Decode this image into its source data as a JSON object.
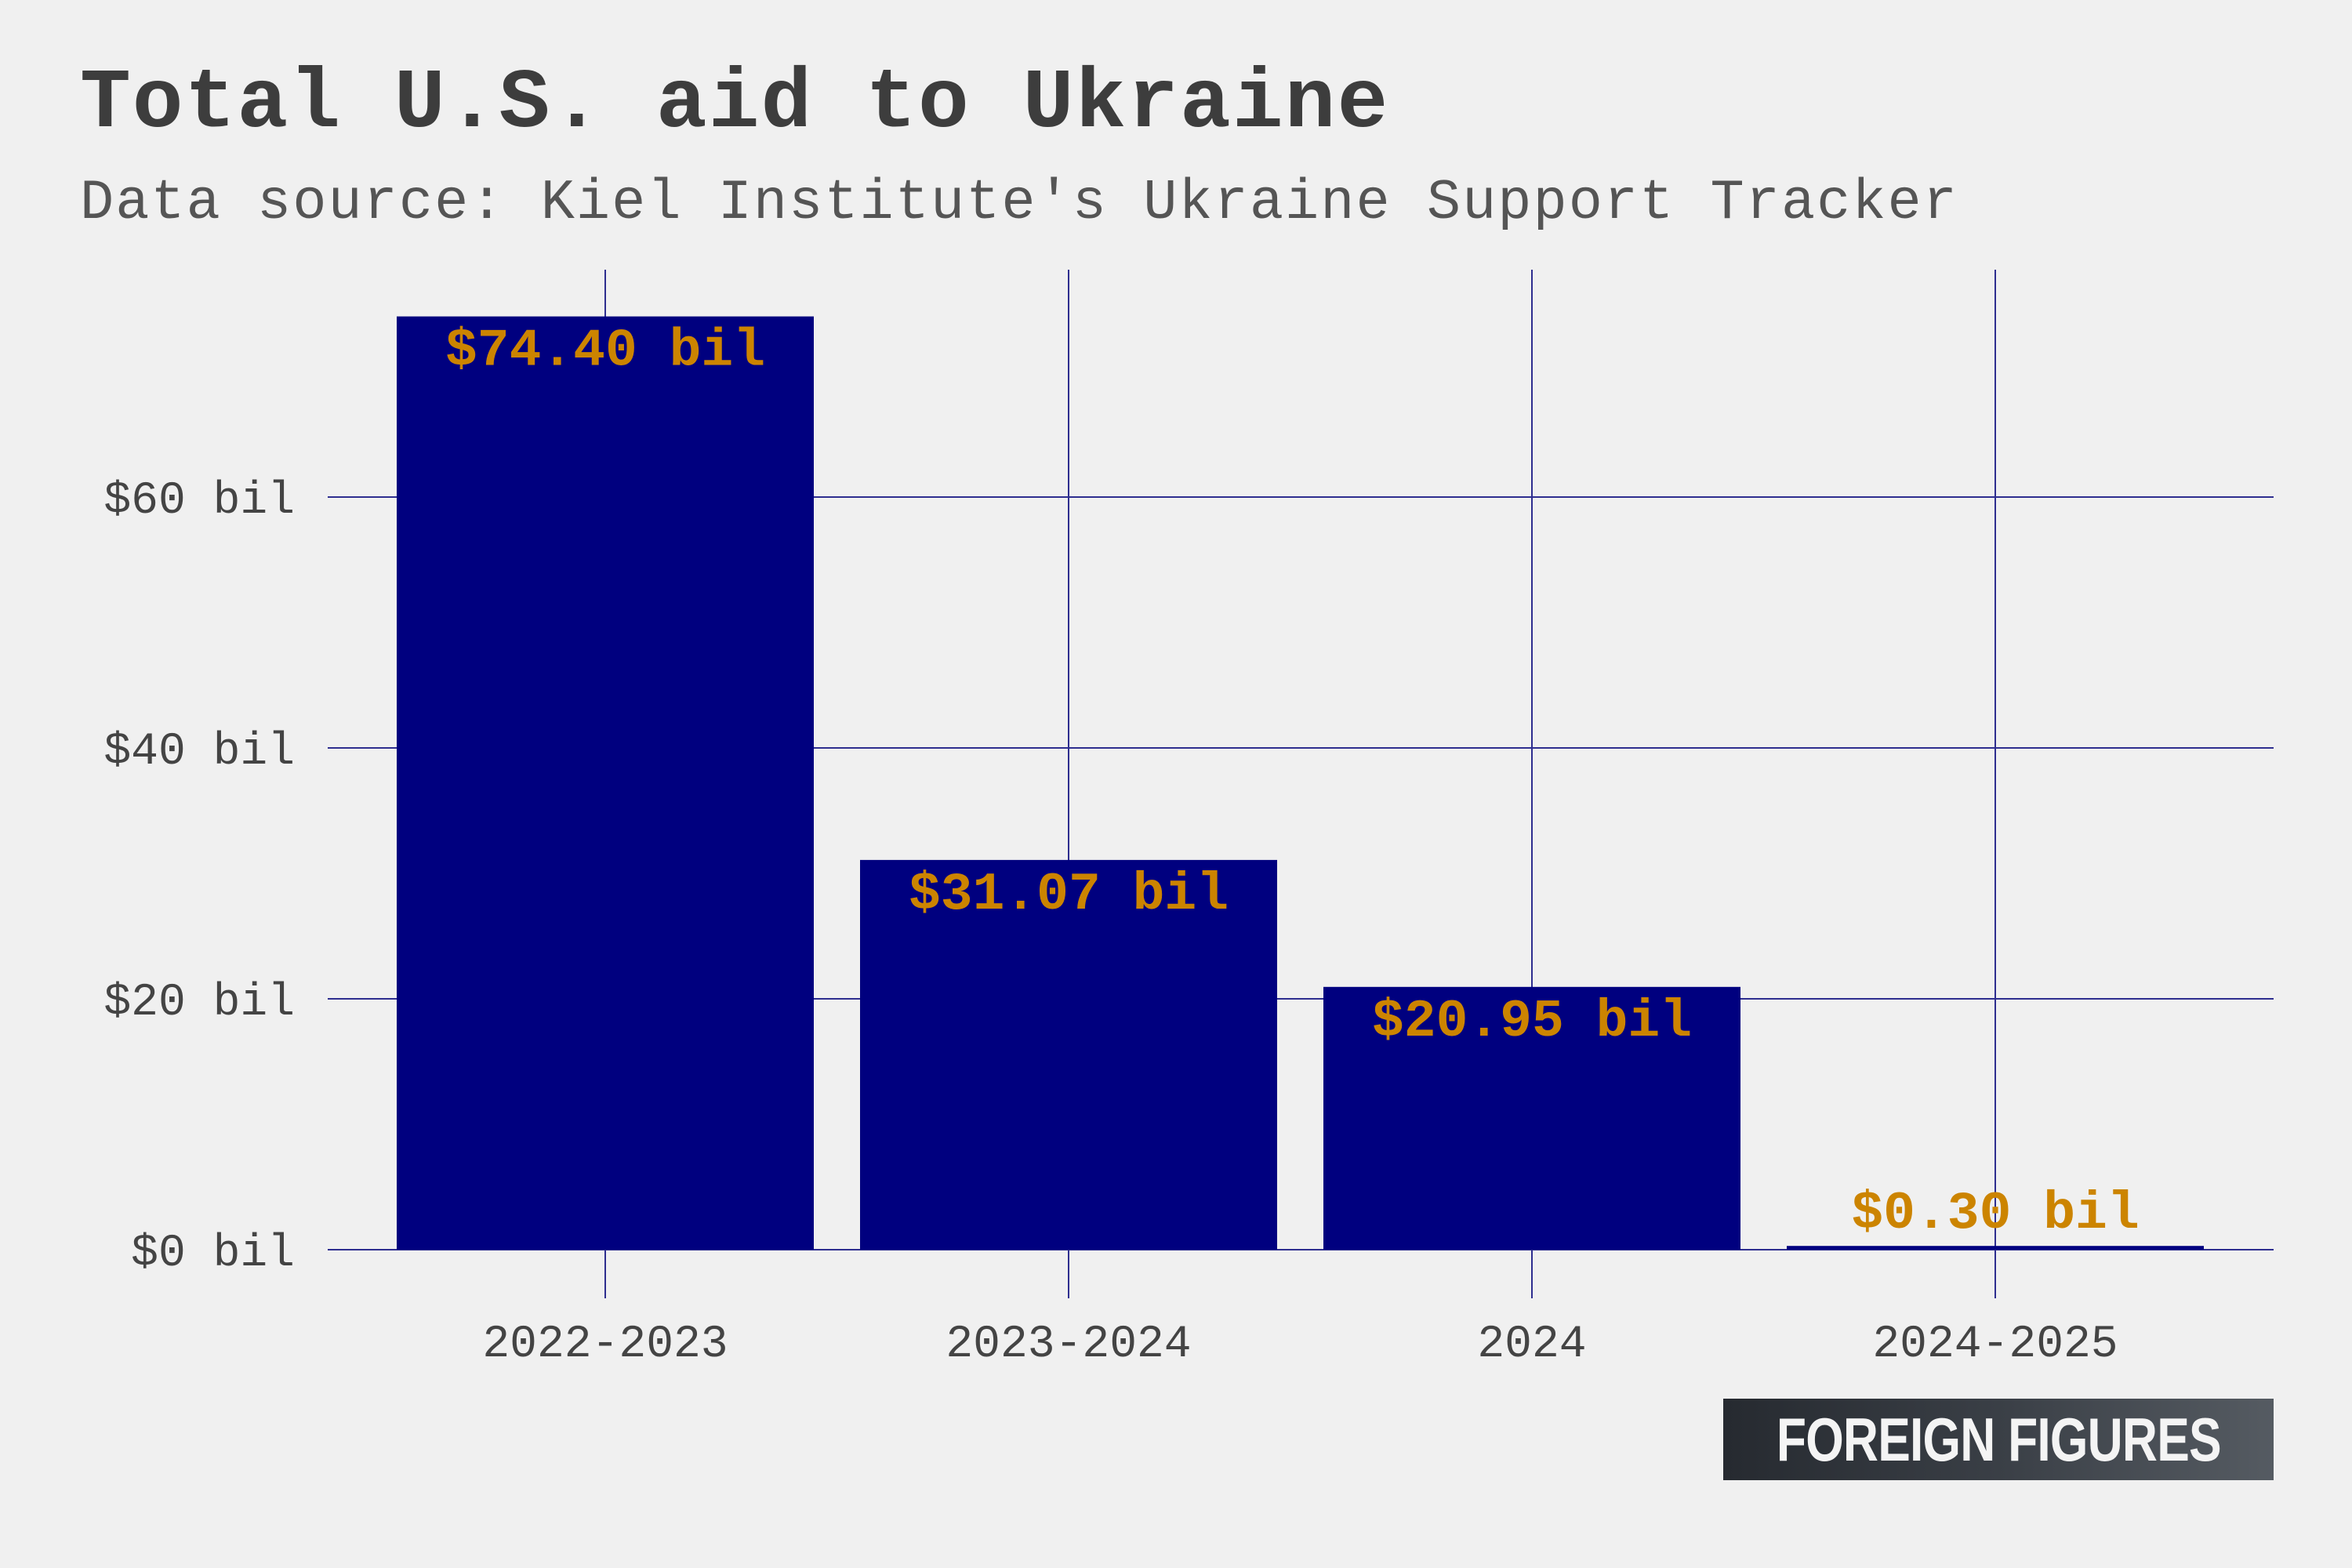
{
  "title": "Total U.S. aid to Ukraine",
  "subtitle": "Data source: Kiel Institute's Ukraine Support Tracker",
  "brand": "FOREIGN FIGURES",
  "colors": {
    "bar": "#00007f",
    "label": "#cc8400",
    "grid": "#2e2e8f",
    "axis_text": "#444444",
    "background": "#f0f0f0"
  },
  "chart_data": {
    "type": "bar",
    "categories": [
      "2022-2023",
      "2023-2024",
      "2024",
      "2024-2025"
    ],
    "values": [
      74.4,
      31.07,
      20.95,
      0.3
    ],
    "value_labels": [
      "$74.40 bil",
      "$31.07 bil",
      "$20.95 bil",
      "$0.30 bil"
    ],
    "yticks": [
      0,
      20,
      40,
      60
    ],
    "ytick_labels": [
      "$0 bil",
      "$20 bil",
      "$40 bil",
      "$60 bil"
    ],
    "ylim": [
      0,
      78
    ],
    "grid": true,
    "legend": "none"
  }
}
